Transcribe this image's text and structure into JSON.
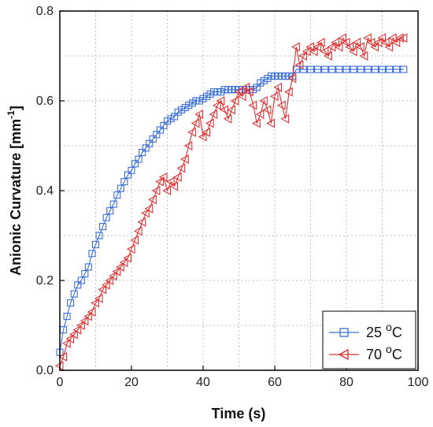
{
  "chart_data": {
    "type": "scatter",
    "title": "",
    "xlabel": "Time (s)",
    "ylabel_main": "Anionic Curvature [mm",
    "ylabel_sup": "-1",
    "ylabel_end": "]",
    "xlim": [
      0,
      100
    ],
    "ylim": [
      0.0,
      0.8
    ],
    "xticks": [
      "0",
      "20",
      "40",
      "60",
      "80",
      "100"
    ],
    "yticks": [
      "0.0",
      "0.2",
      "0.4",
      "0.6",
      "0.8"
    ],
    "grid": true,
    "legend_position": "bottom-right",
    "series": [
      {
        "name_main": "25 ",
        "name_sup": "o",
        "name_end": "C",
        "marker": "square",
        "color": "#3a6fd8",
        "x": [
          0,
          1,
          2,
          3,
          4,
          5,
          6,
          7,
          8,
          9,
          10,
          11,
          12,
          13,
          14,
          15,
          16,
          17,
          18,
          19,
          20,
          21,
          22,
          23,
          24,
          25,
          26,
          27,
          28,
          29,
          30,
          31,
          32,
          33,
          34,
          35,
          36,
          37,
          38,
          39,
          40,
          41,
          42,
          43,
          44,
          45,
          46,
          47,
          48,
          49,
          50,
          51,
          52,
          53,
          54,
          55,
          56,
          57,
          58,
          59,
          60,
          61,
          62,
          63,
          64,
          65,
          66,
          68,
          70,
          72,
          74,
          76,
          78,
          80,
          82,
          84,
          86,
          88,
          90,
          92,
          94,
          96
        ],
        "y": [
          0.04,
          0.09,
          0.12,
          0.15,
          0.17,
          0.19,
          0.2,
          0.215,
          0.23,
          0.26,
          0.28,
          0.3,
          0.32,
          0.34,
          0.355,
          0.37,
          0.39,
          0.405,
          0.42,
          0.435,
          0.445,
          0.46,
          0.47,
          0.485,
          0.495,
          0.505,
          0.515,
          0.525,
          0.535,
          0.545,
          0.555,
          0.56,
          0.565,
          0.575,
          0.58,
          0.585,
          0.59,
          0.595,
          0.6,
          0.6,
          0.605,
          0.61,
          0.615,
          0.62,
          0.62,
          0.62,
          0.625,
          0.625,
          0.625,
          0.625,
          0.625,
          0.625,
          0.625,
          0.625,
          0.625,
          0.63,
          0.64,
          0.645,
          0.65,
          0.655,
          0.655,
          0.655,
          0.655,
          0.655,
          0.655,
          0.655,
          0.67,
          0.67,
          0.67,
          0.67,
          0.67,
          0.67,
          0.67,
          0.67,
          0.67,
          0.67,
          0.67,
          0.67,
          0.67,
          0.67,
          0.67,
          0.67
        ]
      },
      {
        "name_main": "70 ",
        "name_sup": "o",
        "name_end": "C",
        "marker": "triangle-left",
        "color": "#e03030",
        "x": [
          0,
          1,
          2,
          3,
          4,
          5,
          6,
          7,
          8,
          9,
          10,
          11,
          12,
          13,
          14,
          15,
          16,
          17,
          18,
          19,
          20,
          21,
          22,
          23,
          24,
          25,
          26,
          27,
          28,
          29,
          30,
          31,
          32,
          33,
          34,
          35,
          36,
          37,
          38,
          39,
          40,
          41,
          42,
          43,
          44,
          45,
          46,
          47,
          48,
          49,
          50,
          51,
          52,
          53,
          54,
          55,
          56,
          57,
          58,
          59,
          60,
          61,
          62,
          63,
          64,
          65,
          66,
          67,
          68,
          69,
          70,
          71,
          72,
          73,
          74,
          75,
          76,
          77,
          78,
          79,
          80,
          81,
          82,
          83,
          84,
          85,
          86,
          87,
          88,
          89,
          90,
          91,
          92,
          93,
          94,
          95,
          96
        ],
        "y": [
          0.01,
          0.03,
          0.06,
          0.07,
          0.08,
          0.09,
          0.1,
          0.11,
          0.12,
          0.13,
          0.15,
          0.16,
          0.18,
          0.19,
          0.2,
          0.21,
          0.22,
          0.23,
          0.24,
          0.25,
          0.27,
          0.29,
          0.31,
          0.33,
          0.35,
          0.36,
          0.38,
          0.4,
          0.42,
          0.43,
          0.4,
          0.42,
          0.41,
          0.43,
          0.45,
          0.47,
          0.5,
          0.53,
          0.55,
          0.57,
          0.52,
          0.53,
          0.55,
          0.57,
          0.59,
          0.6,
          0.58,
          0.56,
          0.58,
          0.6,
          0.62,
          0.61,
          0.63,
          0.62,
          0.59,
          0.55,
          0.57,
          0.6,
          0.58,
          0.55,
          0.61,
          0.63,
          0.59,
          0.56,
          0.62,
          0.65,
          0.72,
          0.68,
          0.7,
          0.71,
          0.72,
          0.71,
          0.72,
          0.73,
          0.71,
          0.7,
          0.72,
          0.73,
          0.72,
          0.74,
          0.73,
          0.72,
          0.71,
          0.73,
          0.72,
          0.7,
          0.74,
          0.73,
          0.72,
          0.73,
          0.74,
          0.73,
          0.72,
          0.74,
          0.73,
          0.74,
          0.74
        ]
      }
    ]
  }
}
